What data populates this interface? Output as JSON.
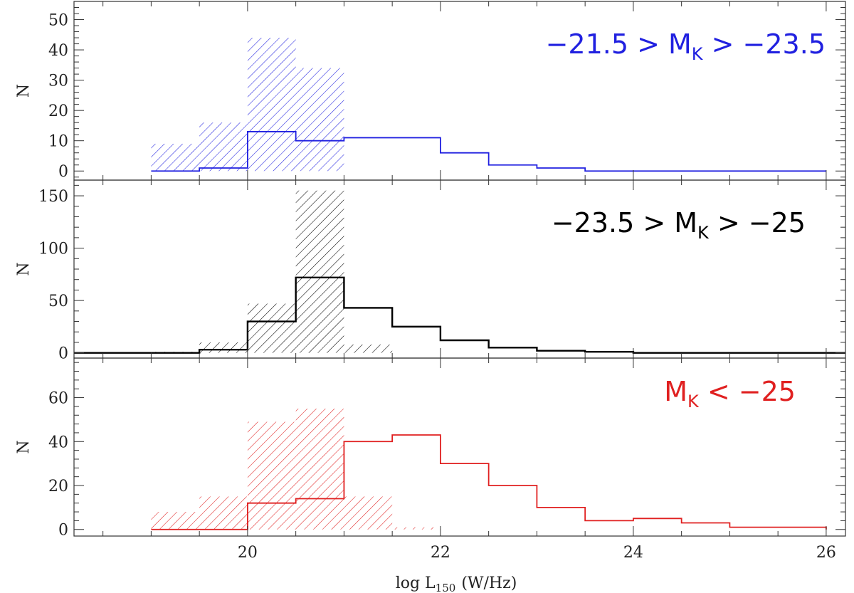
{
  "chart_data": {
    "type": "bar",
    "xlabel": "log L",
    "xlabel_subscript": "150",
    "xlabel_units": "(W/Hz)",
    "xlim": [
      18.2,
      26.2
    ],
    "xticks": [
      20,
      22,
      24,
      26
    ],
    "tick_labels": [
      "20",
      "22",
      "24",
      "26"
    ],
    "bin_edges": [
      19.0,
      19.5,
      20.0,
      20.5,
      21.0,
      21.5,
      22.0,
      22.5,
      23.0,
      23.5,
      24.0,
      24.5,
      25.0,
      25.5,
      26.0
    ],
    "panels": [
      {
        "label_left": "−21.5 > M",
        "label_sub": "K",
        "label_right": " > −23.5",
        "color": "#2020e0",
        "ylabel": "N",
        "ylim": [
          -3,
          56
        ],
        "yticks": [
          0,
          10,
          20,
          30,
          40,
          50
        ],
        "ytick_labels": [
          "0",
          "10",
          "20",
          "30",
          "40",
          "50"
        ],
        "series": [
          {
            "style": "hatched",
            "values": [
              9,
              16,
              44,
              34,
              0,
              0,
              0,
              0,
              0,
              0,
              0,
              0,
              0,
              0
            ]
          },
          {
            "style": "outline",
            "values": [
              0,
              1,
              13,
              10,
              11,
              11,
              6,
              2,
              1,
              0,
              0,
              0,
              0,
              0
            ]
          }
        ]
      },
      {
        "label_left": "−23.5 > M",
        "label_sub": "K",
        "label_right": " > −25",
        "color": "#000000",
        "ylabel": "N",
        "ylim": [
          -5,
          165
        ],
        "yticks": [
          0,
          50,
          100,
          150
        ],
        "ytick_labels": [
          "0",
          "50",
          "100",
          "150"
        ],
        "series": [
          {
            "style": "hatched",
            "values": [
              1,
              10,
              47,
              155,
              8,
              0,
              0,
              0,
              0,
              0,
              0,
              0,
              0,
              0
            ]
          },
          {
            "style": "outline",
            "values": [
              0,
              3,
              30,
              72,
              43,
              25,
              12,
              5,
              2,
              1,
              0,
              0,
              0,
              0
            ]
          }
        ]
      },
      {
        "label_left": "M",
        "label_sub": "K",
        "label_right": " < −25",
        "color": "#e02020",
        "ylabel": "N",
        "ylim": [
          -3,
          78
        ],
        "yticks": [
          0,
          20,
          40,
          60
        ],
        "ytick_labels": [
          "0",
          "20",
          "40",
          "60"
        ],
        "series": [
          {
            "style": "hatched",
            "values": [
              8,
              15,
              49,
              55,
              15,
              1,
              0,
              0,
              0,
              0,
              0,
              0,
              0,
              0
            ]
          },
          {
            "style": "outline",
            "values": [
              0,
              0,
              12,
              14,
              40,
              43,
              30,
              20,
              10,
              4,
              5,
              3,
              1,
              1
            ]
          }
        ]
      }
    ]
  }
}
